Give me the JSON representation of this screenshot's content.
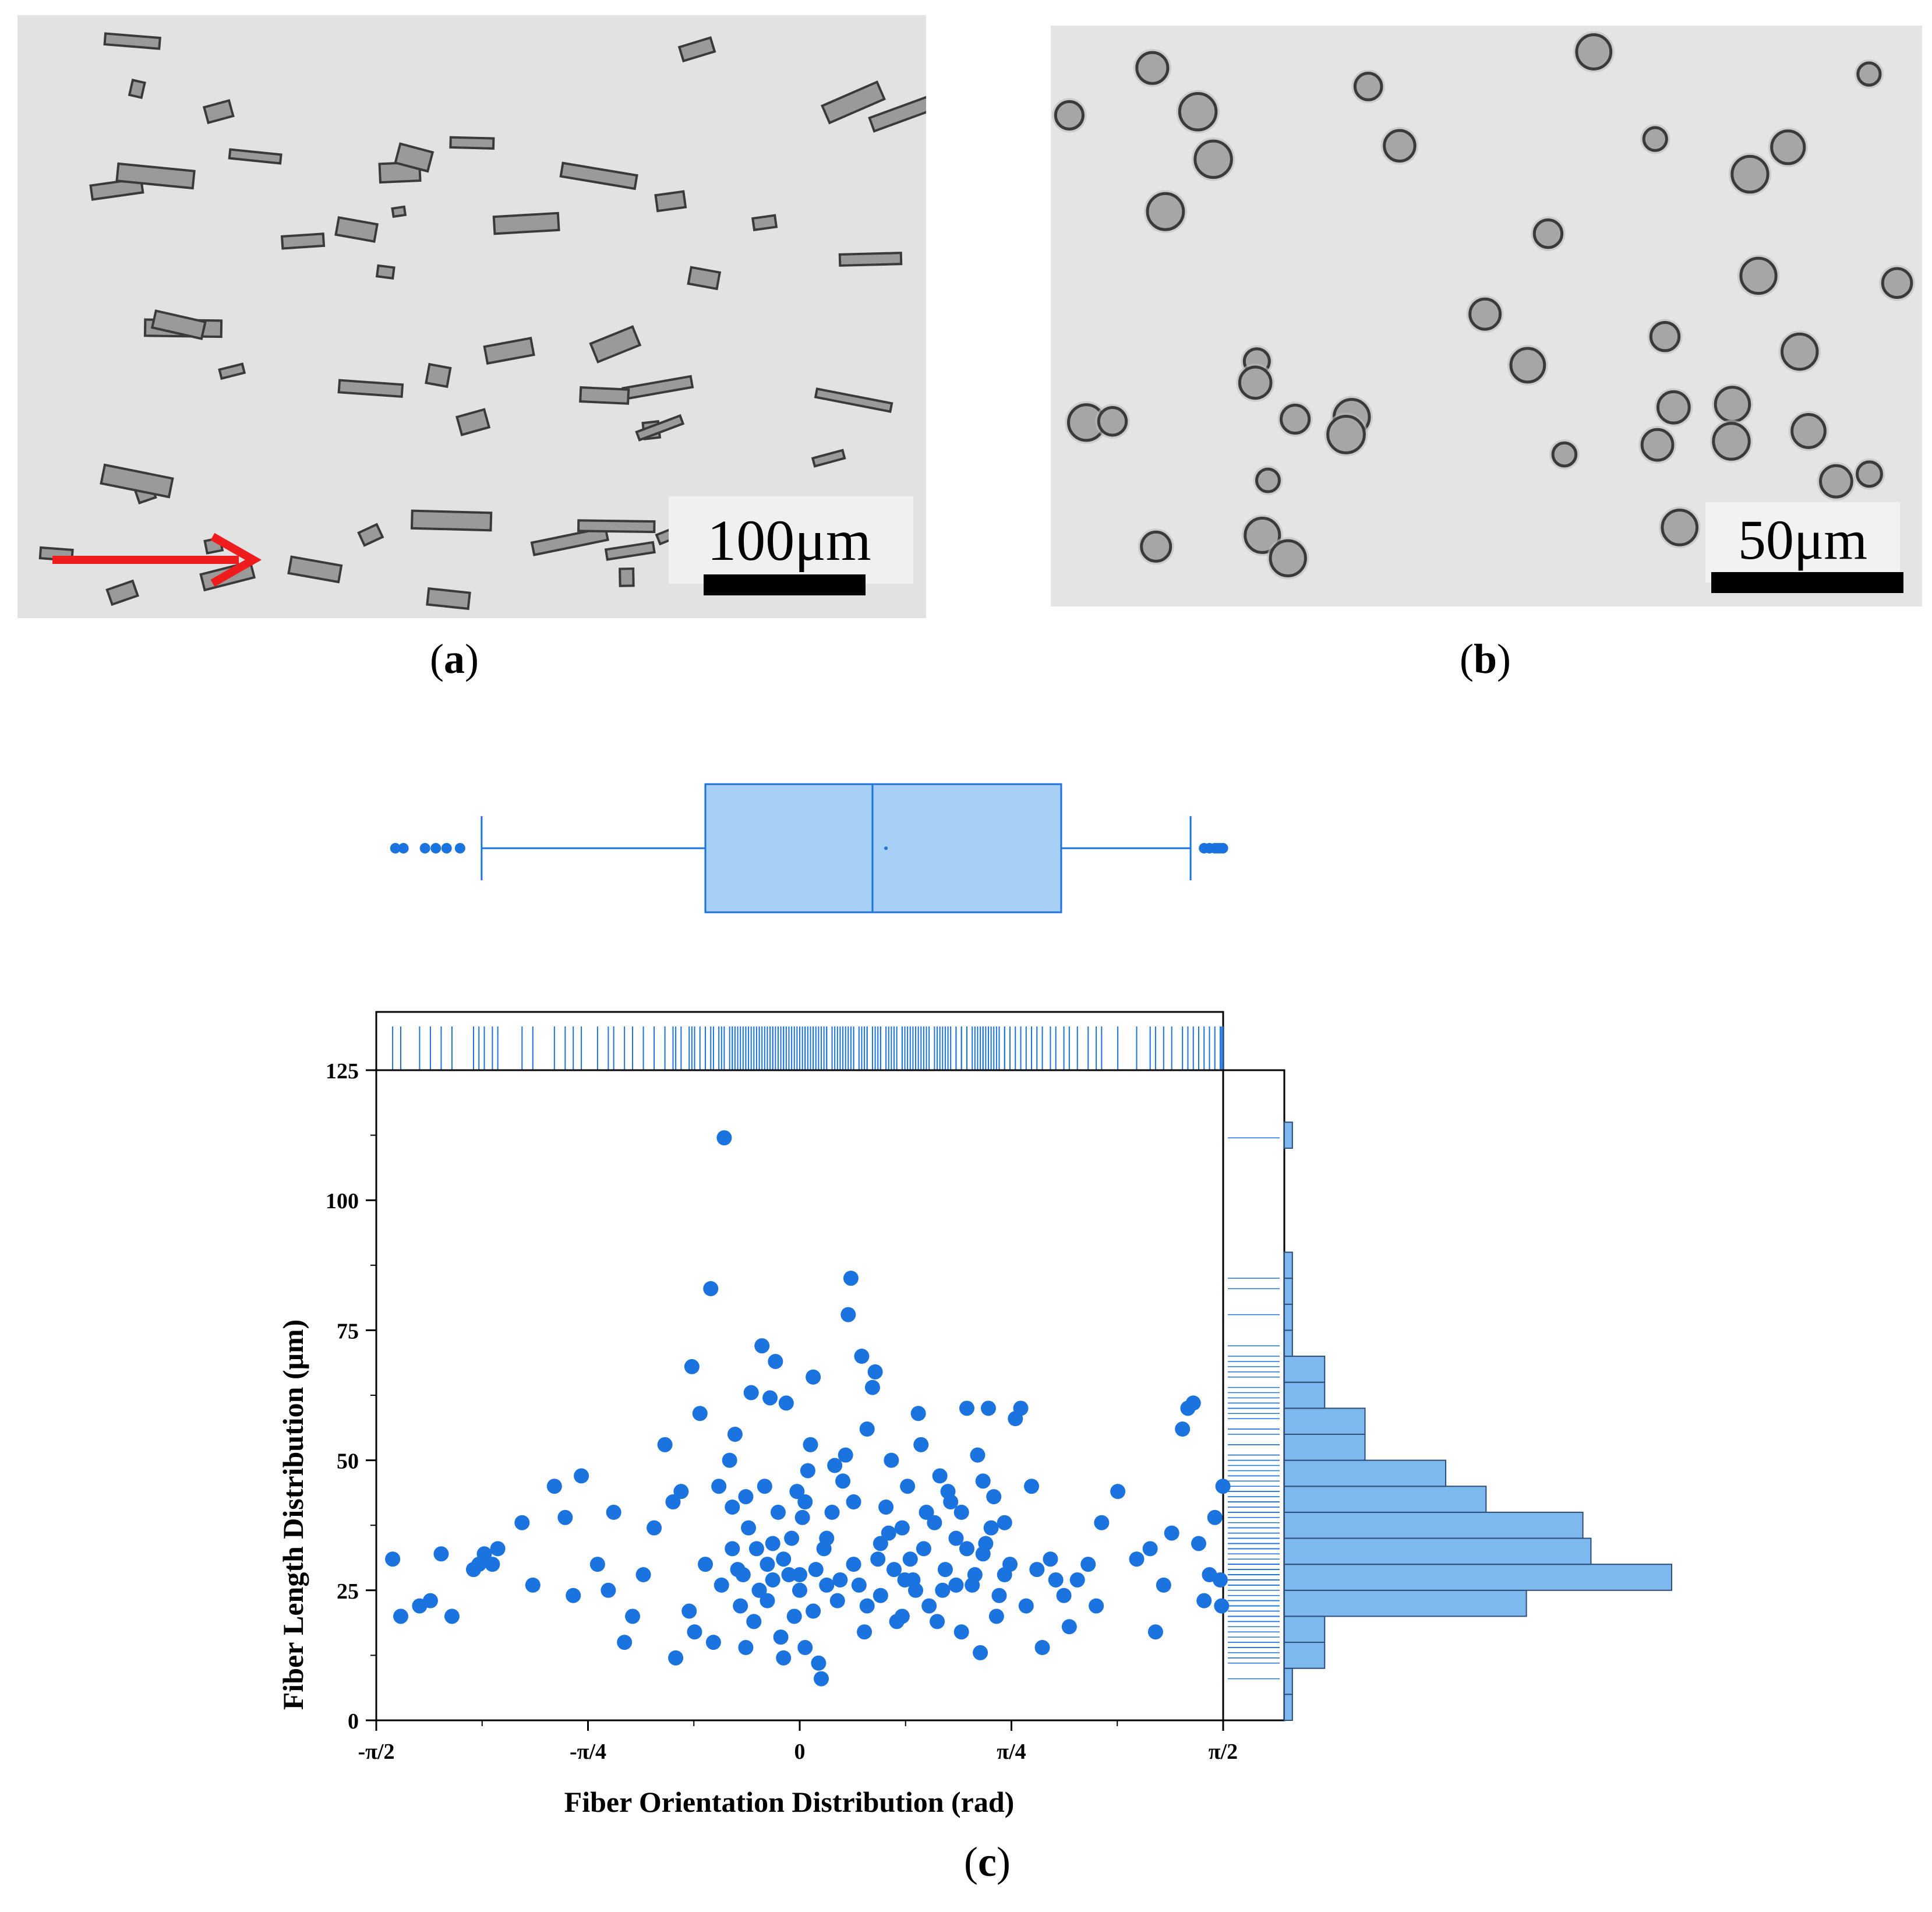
{
  "panels": {
    "a": {
      "label": "a",
      "scale_text": "100μm",
      "arrow_color": "#ee1c1c"
    },
    "b": {
      "label": "b",
      "scale_text": "50μm"
    },
    "c": {
      "label": "c"
    }
  },
  "colors": {
    "primary": "#1b73e0",
    "fill": "#7db8ef",
    "box_fill": "#a8cff5"
  },
  "chart_data": {
    "type": "scatter",
    "xlabel": "Fiber Orientation Distribution (rad)",
    "ylabel": "Fiber Length Distribution (μm)",
    "xlim": [
      -1.5708,
      1.5708
    ],
    "ylim": [
      0,
      125
    ],
    "x_ticks": [
      {
        "value": -1.5708,
        "label": "-π/2"
      },
      {
        "value": -0.7854,
        "label": "-π/4"
      },
      {
        "value": 0,
        "label": "0"
      },
      {
        "value": 0.7854,
        "label": "π/4"
      },
      {
        "value": 1.5708,
        "label": "π/2"
      }
    ],
    "y_ticks": [
      0,
      25,
      50,
      75,
      100,
      125
    ],
    "points": [
      [
        -1.51,
        31
      ],
      [
        -1.48,
        20
      ],
      [
        -1.41,
        22
      ],
      [
        -1.37,
        23
      ],
      [
        -1.33,
        32
      ],
      [
        -1.29,
        20
      ],
      [
        -1.21,
        29
      ],
      [
        -1.19,
        30
      ],
      [
        -1.17,
        32
      ],
      [
        -1.14,
        30
      ],
      [
        -1.12,
        33
      ],
      [
        -1.03,
        38
      ],
      [
        -0.99,
        26
      ],
      [
        -0.91,
        45
      ],
      [
        -0.87,
        39
      ],
      [
        -0.84,
        24
      ],
      [
        -0.81,
        47
      ],
      [
        -0.75,
        30
      ],
      [
        -0.71,
        25
      ],
      [
        -0.69,
        40
      ],
      [
        -0.65,
        15
      ],
      [
        -0.62,
        20
      ],
      [
        -0.58,
        28
      ],
      [
        -0.54,
        37
      ],
      [
        -0.5,
        53
      ],
      [
        -0.47,
        42
      ],
      [
        -0.46,
        12
      ],
      [
        -0.44,
        44
      ],
      [
        -0.41,
        21
      ],
      [
        -0.4,
        68
      ],
      [
        -0.37,
        59
      ],
      [
        -0.35,
        30
      ],
      [
        -0.33,
        83
      ],
      [
        -0.3,
        45
      ],
      [
        -0.28,
        112
      ],
      [
        -0.26,
        50
      ],
      [
        -0.25,
        33
      ],
      [
        -0.24,
        55
      ],
      [
        -0.23,
        29
      ],
      [
        -0.22,
        22
      ],
      [
        -0.21,
        28
      ],
      [
        -0.2,
        43
      ],
      [
        -0.19,
        37
      ],
      [
        -0.18,
        63
      ],
      [
        -0.17,
        19
      ],
      [
        -0.16,
        33
      ],
      [
        -0.15,
        25
      ],
      [
        -0.14,
        72
      ],
      [
        -0.13,
        45
      ],
      [
        -0.12,
        30
      ],
      [
        -0.11,
        62
      ],
      [
        -0.1,
        27
      ],
      [
        -0.09,
        69
      ],
      [
        -0.08,
        40
      ],
      [
        -0.07,
        16
      ],
      [
        -0.06,
        31
      ],
      [
        -0.05,
        61
      ],
      [
        -0.04,
        28
      ],
      [
        -0.03,
        35
      ],
      [
        -0.02,
        20
      ],
      [
        -0.01,
        44
      ],
      [
        0,
        25
      ],
      [
        0.01,
        39
      ],
      [
        0.02,
        14
      ],
      [
        0.03,
        48
      ],
      [
        0.04,
        53
      ],
      [
        0.05,
        66
      ],
      [
        0.06,
        29
      ],
      [
        0.07,
        11
      ],
      [
        0.08,
        8
      ],
      [
        0.1,
        35
      ],
      [
        0.12,
        40
      ],
      [
        0.14,
        23
      ],
      [
        0.16,
        46
      ],
      [
        0.18,
        78
      ],
      [
        0.19,
        85
      ],
      [
        0.2,
        30
      ],
      [
        0.22,
        26
      ],
      [
        0.23,
        70
      ],
      [
        0.25,
        56
      ],
      [
        0.27,
        64
      ],
      [
        0.28,
        67
      ],
      [
        0.29,
        31
      ],
      [
        0.3,
        24
      ],
      [
        0.32,
        41
      ],
      [
        0.34,
        50
      ],
      [
        0.36,
        19
      ],
      [
        0.38,
        37
      ],
      [
        0.4,
        45
      ],
      [
        0.42,
        27
      ],
      [
        0.44,
        59
      ],
      [
        0.46,
        33
      ],
      [
        0.48,
        22
      ],
      [
        0.5,
        38
      ],
      [
        0.52,
        47
      ],
      [
        0.54,
        29
      ],
      [
        0.56,
        42
      ],
      [
        0.58,
        35
      ],
      [
        0.6,
        17
      ],
      [
        0.62,
        60
      ],
      [
        0.64,
        26
      ],
      [
        0.66,
        51
      ],
      [
        0.67,
        13
      ],
      [
        0.68,
        32
      ],
      [
        0.7,
        60
      ],
      [
        0.72,
        43
      ],
      [
        0.74,
        24
      ],
      [
        0.76,
        38
      ],
      [
        0.78,
        30
      ],
      [
        0.8,
        58
      ],
      [
        0.82,
        60
      ],
      [
        0.84,
        22
      ],
      [
        0.86,
        45
      ],
      [
        0.88,
        29
      ],
      [
        0.9,
        14
      ],
      [
        0.93,
        31
      ],
      [
        0.95,
        27
      ],
      [
        0.98,
        24
      ],
      [
        1.0,
        18
      ],
      [
        1.03,
        27
      ],
      [
        1.07,
        30
      ],
      [
        1.1,
        22
      ],
      [
        1.12,
        38
      ],
      [
        1.18,
        44
      ],
      [
        1.25,
        31
      ],
      [
        1.3,
        33
      ],
      [
        1.32,
        17
      ],
      [
        1.35,
        26
      ],
      [
        1.38,
        36
      ],
      [
        1.42,
        56
      ],
      [
        1.44,
        60
      ],
      [
        1.46,
        61
      ],
      [
        1.48,
        34
      ],
      [
        1.5,
        23
      ],
      [
        1.52,
        28
      ],
      [
        1.54,
        39
      ],
      [
        1.56,
        27
      ],
      [
        1.565,
        22
      ],
      [
        1.57,
        45
      ],
      [
        -0.32,
        15
      ],
      [
        -0.25,
        41
      ],
      [
        -0.15,
        25
      ],
      [
        -0.1,
        34
      ],
      [
        0.0,
        28
      ],
      [
        0.05,
        21
      ],
      [
        0.09,
        33
      ],
      [
        0.13,
        49
      ],
      [
        0.15,
        27
      ],
      [
        0.2,
        42
      ],
      [
        0.25,
        22
      ],
      [
        0.3,
        34
      ],
      [
        0.35,
        29
      ],
      [
        0.38,
        20
      ],
      [
        0.41,
        31
      ],
      [
        0.43,
        25
      ],
      [
        0.47,
        40
      ],
      [
        0.51,
        19
      ],
      [
        0.55,
        44
      ],
      [
        0.58,
        26
      ],
      [
        0.62,
        33
      ],
      [
        0.65,
        28
      ],
      [
        0.68,
        46
      ],
      [
        0.71,
        37
      ],
      [
        0.73,
        20
      ],
      [
        0.76,
        28
      ],
      [
        -0.39,
        17
      ],
      [
        -0.29,
        26
      ],
      [
        -0.2,
        14
      ],
      [
        -0.12,
        23
      ],
      [
        -0.06,
        12
      ],
      [
        0.02,
        42
      ],
      [
        0.1,
        26
      ],
      [
        0.17,
        51
      ],
      [
        0.24,
        17
      ],
      [
        0.33,
        36
      ],
      [
        0.39,
        27
      ],
      [
        0.45,
        53
      ],
      [
        0.53,
        25
      ],
      [
        0.6,
        40
      ],
      [
        0.69,
        34
      ]
    ],
    "box": {
      "whisker_low": -1.18,
      "q1": -0.35,
      "median": 0.27,
      "mean": 0.32,
      "q3": 0.97,
      "whisker_high": 1.45,
      "outliers_low": [
        -1.5,
        -1.47,
        -1.39,
        -1.35,
        -1.31,
        -1.26
      ],
      "outliers_high": [
        1.5,
        1.52,
        1.54,
        1.55,
        1.56,
        1.57
      ]
    },
    "histogram": {
      "bins": [
        [
          0,
          5
        ],
        [
          5,
          10
        ],
        [
          10,
          15
        ],
        [
          15,
          20
        ],
        [
          20,
          25
        ],
        [
          25,
          30
        ],
        [
          30,
          35
        ],
        [
          35,
          40
        ],
        [
          40,
          45
        ],
        [
          45,
          50
        ],
        [
          50,
          55
        ],
        [
          55,
          60
        ],
        [
          60,
          65
        ],
        [
          65,
          70
        ],
        [
          70,
          75
        ],
        [
          75,
          80
        ],
        [
          80,
          85
        ],
        [
          85,
          90
        ],
        [
          90,
          95
        ],
        [
          95,
          100
        ],
        [
          100,
          105
        ],
        [
          105,
          110
        ],
        [
          110,
          115
        ]
      ],
      "counts": [
        1,
        1,
        5,
        5,
        30,
        48,
        38,
        37,
        25,
        20,
        10,
        10,
        5,
        5,
        1,
        1,
        1,
        1,
        0,
        0,
        0,
        0,
        1
      ]
    }
  }
}
